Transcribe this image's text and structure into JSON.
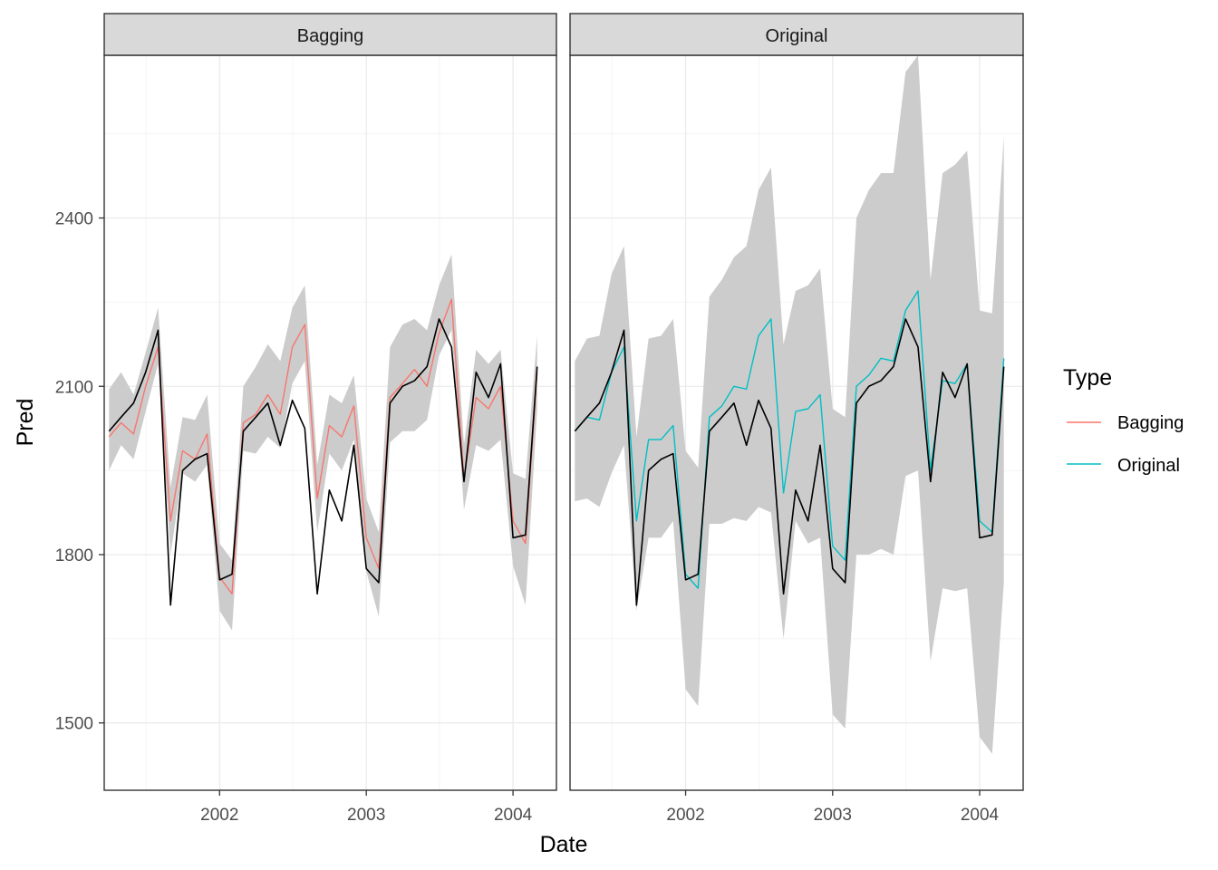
{
  "chart_data": {
    "type": "line",
    "xlabel": "Date",
    "ylabel": "Pred",
    "x_ticks": [
      "2002",
      "2003",
      "2004"
    ],
    "y_ticks": [
      1500,
      1800,
      2100,
      2400
    ],
    "ylim": [
      1380,
      2690
    ],
    "xlim": [
      "2001-03-20",
      "2004-04-18"
    ],
    "grid": true,
    "legend": {
      "title": "Type",
      "position": "right",
      "entries": [
        {
          "label": "Bagging",
          "color": "#F8766D"
        },
        {
          "label": "Original",
          "color": "#00BFC4"
        }
      ]
    },
    "dates": [
      "2001-04-01",
      "2001-05-01",
      "2001-06-01",
      "2001-07-01",
      "2001-08-01",
      "2001-09-01",
      "2001-10-01",
      "2001-11-01",
      "2001-12-01",
      "2002-01-01",
      "2002-02-01",
      "2002-03-01",
      "2002-04-01",
      "2002-05-01",
      "2002-06-01",
      "2002-07-01",
      "2002-08-01",
      "2002-09-01",
      "2002-10-01",
      "2002-11-01",
      "2002-12-01",
      "2003-01-01",
      "2003-02-01",
      "2003-03-01",
      "2003-04-01",
      "2003-05-01",
      "2003-06-01",
      "2003-07-01",
      "2003-08-01",
      "2003-09-01",
      "2003-10-01",
      "2003-11-01",
      "2003-12-01",
      "2004-01-01",
      "2004-02-01",
      "2004-03-01"
    ],
    "actual": {
      "color": "#000000",
      "values": [
        2020,
        2045,
        2070,
        2125,
        2200,
        1710,
        1950,
        1970,
        1980,
        1755,
        1765,
        2020,
        2045,
        2070,
        1995,
        2075,
        2025,
        1730,
        1915,
        1860,
        1995,
        1775,
        1750,
        2070,
        2100,
        2110,
        2135,
        2220,
        2170,
        1930,
        2125,
        2080,
        2140,
        1830,
        1835,
        2135
      ]
    },
    "panels": [
      {
        "name": "Bagging",
        "line_color": "#F8766D",
        "pred": [
          2010,
          2035,
          2015,
          2100,
          2170,
          1860,
          1985,
          1970,
          2015,
          1760,
          1730,
          2035,
          2050,
          2085,
          2050,
          2170,
          2210,
          1900,
          2030,
          2010,
          2065,
          1830,
          1775,
          2080,
          2105,
          2130,
          2100,
          2195,
          2255,
          1935,
          2080,
          2060,
          2100,
          1860,
          1820,
          2125
        ],
        "lower": [
          1950,
          1995,
          1970,
          2055,
          2140,
          1800,
          1945,
          1930,
          1960,
          1700,
          1665,
          1985,
          1980,
          2010,
          1990,
          2105,
          2145,
          1840,
          1980,
          1950,
          2005,
          1770,
          1690,
          2000,
          2020,
          2020,
          2040,
          2155,
          2200,
          1880,
          1995,
          1985,
          2005,
          1780,
          1710,
          2060
        ],
        "upper": [
          2095,
          2125,
          2085,
          2160,
          2240,
          1920,
          2045,
          2040,
          2085,
          1820,
          1790,
          2100,
          2135,
          2175,
          2145,
          2240,
          2280,
          1960,
          2085,
          2070,
          2120,
          1900,
          1840,
          2170,
          2210,
          2220,
          2200,
          2280,
          2335,
          1995,
          2165,
          2140,
          2165,
          1945,
          1935,
          2190
        ]
      },
      {
        "name": "Original",
        "line_color": "#00BFC4",
        "pred": [
          2020,
          2045,
          2040,
          2125,
          2170,
          1860,
          2005,
          2005,
          2030,
          1765,
          1740,
          2045,
          2065,
          2100,
          2095,
          2190,
          2220,
          1910,
          2055,
          2060,
          2085,
          1815,
          1790,
          2100,
          2120,
          2150,
          2145,
          2235,
          2270,
          1950,
          2110,
          2105,
          2140,
          1860,
          1840,
          2150
        ],
        "lower": [
          1895,
          1900,
          1885,
          1945,
          1995,
          1700,
          1830,
          1830,
          1860,
          1560,
          1530,
          1855,
          1855,
          1865,
          1860,
          1885,
          1875,
          1650,
          1860,
          1820,
          1830,
          1515,
          1490,
          1800,
          1800,
          1810,
          1800,
          1940,
          1950,
          1610,
          1740,
          1735,
          1740,
          1475,
          1445,
          1750
        ],
        "upper": [
          2145,
          2185,
          2190,
          2300,
          2350,
          2010,
          2185,
          2190,
          2220,
          1985,
          1955,
          2260,
          2290,
          2330,
          2350,
          2450,
          2490,
          2175,
          2270,
          2280,
          2310,
          2060,
          2045,
          2400,
          2450,
          2480,
          2480,
          2660,
          2690,
          2290,
          2480,
          2495,
          2520,
          2235,
          2230,
          2545
        ]
      }
    ]
  }
}
